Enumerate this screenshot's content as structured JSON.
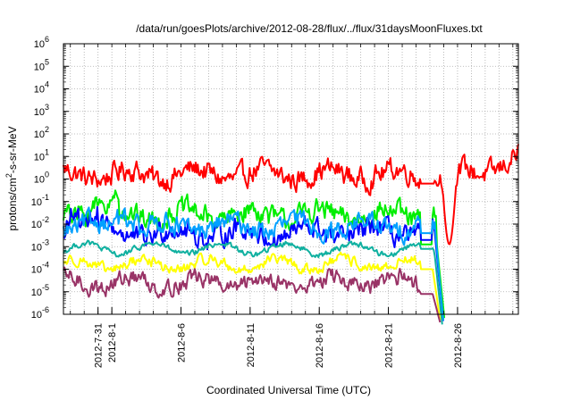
{
  "chart_data": {
    "type": "line",
    "title": "/data/run/goesPlots/archive/2012-08-28/flux/../flux/31daysMoonFluxes.txt",
    "xlabel": "Coordinated Universal Time (UTC)",
    "ylabel_parts": {
      "prefix": "protons/cm",
      "sup": "2",
      "suffix": "-s-sr-MeV"
    },
    "yscale": "log",
    "ylim": [
      1e-06,
      1000000.0
    ],
    "y_tick_exponents": [
      -6,
      -5,
      -4,
      -3,
      -2,
      -1,
      0,
      1,
      2,
      3,
      4,
      5,
      6
    ],
    "y_tick_base": "10",
    "xlim_days": [
      -3.5,
      29.4
    ],
    "x_ticks": [
      {
        "day": -1,
        "label": "2012-7-31"
      },
      {
        "day": 0,
        "label": "2012-8-1"
      },
      {
        "day": 5,
        "label": "2012-8-6"
      },
      {
        "day": 10,
        "label": "2012-8-11"
      },
      {
        "day": 15,
        "label": "2012-8-16"
      },
      {
        "day": 20,
        "label": "2012-8-21"
      },
      {
        "day": 25,
        "label": "2012-8-26"
      }
    ],
    "grid": true,
    "series": [
      {
        "color": "#ff0000",
        "base_log": 0.2,
        "noise": 0.45,
        "gap": [
          22.3,
          23.3
        ],
        "gap_log": -0.2,
        "dip": [
          23.9,
          24.9
        ],
        "dip_to_log": -2.9,
        "end_rise": [
          26.5,
          29.4,
          0.9
        ]
      },
      {
        "color": "#00ee00",
        "base_log": -1.6,
        "noise": 0.45,
        "early_high": [
          -2.5,
          0.5,
          0.6
        ],
        "gap": [
          22.3,
          23.2
        ],
        "gap_log": -2.9,
        "plunge": [
          23.5,
          24.1
        ]
      },
      {
        "color": "#0000ff",
        "base_log": -2.4,
        "noise": 0.45,
        "early_high": [
          -3.3,
          -1.0,
          1.0
        ],
        "gap": [
          22.3,
          23.2
        ],
        "gap_log": -2.7,
        "plunge": [
          23.4,
          24.0
        ]
      },
      {
        "color": "#00a0ff",
        "base_log": -2.1,
        "noise": 0.4,
        "early_high": [
          0.2,
          2.0,
          0.6
        ],
        "gap": [
          22.3,
          23.2
        ],
        "gap_log": -2.4,
        "plunge": [
          23.4,
          24.0
        ]
      },
      {
        "color": "#10b0a0",
        "base_log": -3.1,
        "noise": 0.12,
        "gap": [
          22.3,
          23.2
        ],
        "gap_log": -3.1,
        "plunge": [
          23.3,
          23.9
        ]
      },
      {
        "color": "#ffff00",
        "base_log": -3.8,
        "noise": 0.22,
        "gap": [
          22.3,
          23.2
        ],
        "gap_log": -4.0,
        "plunge": [
          23.2,
          23.8
        ]
      },
      {
        "color": "#993366",
        "base_log": -4.6,
        "noise": 0.35,
        "gap": [
          22.3,
          23.2
        ],
        "gap_log": -5.1,
        "plunge": [
          23.2,
          23.8
        ]
      }
    ]
  }
}
